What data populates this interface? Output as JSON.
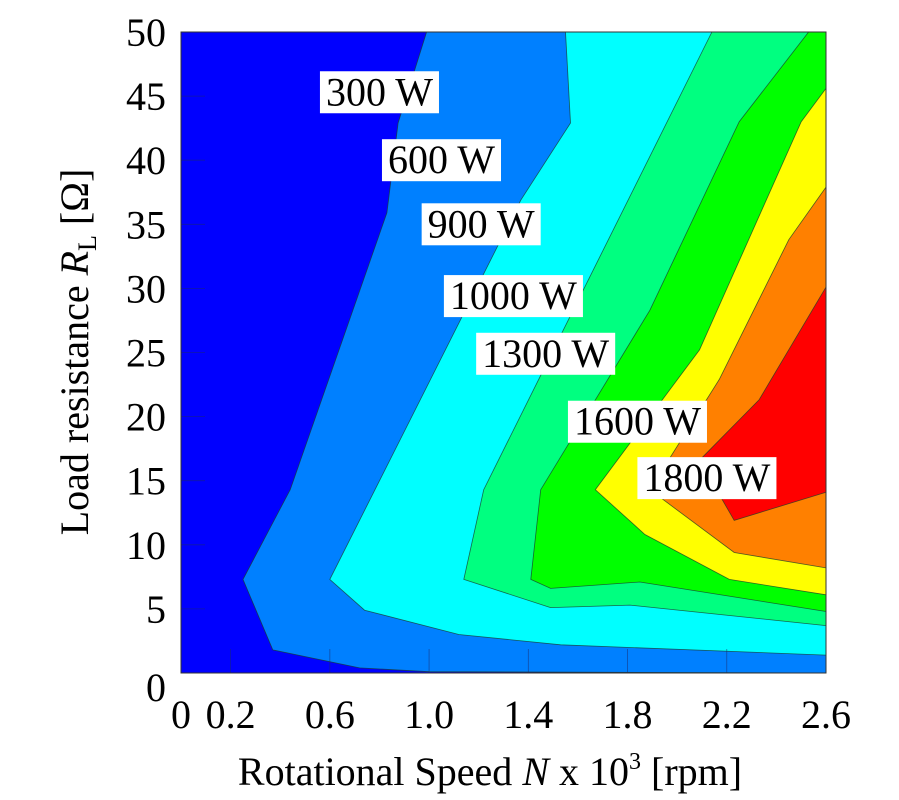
{
  "chart_data": {
    "type": "contour",
    "title": "",
    "xlabel": {
      "prefix": "Rotational Speed ",
      "variable": "N",
      "middle": " x 10",
      "superscript": "3",
      "suffix": " [rpm]"
    },
    "ylabel": {
      "prefix": "Load resistance ",
      "variable": "R",
      "subscript": "L",
      "suffix": " [Ω]"
    },
    "xlim": [
      0,
      2.6
    ],
    "ylim": [
      0,
      50
    ],
    "x_ticks": [
      0,
      0.2,
      0.6,
      1.0,
      1.4,
      1.8,
      2.2,
      2.6
    ],
    "x_tick_labels": [
      "0",
      "0.2",
      "0.6",
      "1.0",
      "1.4",
      "1.8",
      "2.2",
      "2.6"
    ],
    "y_ticks": [
      0,
      5,
      10,
      15,
      20,
      25,
      30,
      35,
      40,
      45,
      50
    ],
    "y_tick_labels": [
      "0",
      "5",
      "10",
      "15",
      "20",
      "25",
      "30",
      "35",
      "40",
      "45",
      "50"
    ],
    "value_unit": "W",
    "levels": [
      {
        "label": "300 W",
        "value": 300,
        "fill_below": "#0000ff",
        "label_pos": [
          0.8,
          45.3
        ]
      },
      {
        "label": "600 W",
        "value": 600,
        "fill_below": "#0080ff",
        "label_pos": [
          1.05,
          40.0
        ]
      },
      {
        "label": "900 W",
        "value": 900,
        "fill_below": "#00ffff",
        "label_pos": [
          1.21,
          35.0
        ]
      },
      {
        "label": "1000 W",
        "value": 1000,
        "fill_below": "#00ff80",
        "label_pos": [
          1.34,
          29.4
        ]
      },
      {
        "label": "1300 W",
        "value": 1300,
        "fill_below": "#00ff00",
        "label_pos": [
          1.47,
          24.9
        ]
      },
      {
        "label": "1600 W",
        "value": 1600,
        "fill_below": "#ffff00",
        "label_pos": [
          1.84,
          19.6
        ]
      },
      {
        "label": "1800 W",
        "value": 1800,
        "fill_below": "#ff8000",
        "label_pos": [
          2.12,
          15.2
        ]
      }
    ],
    "top_fill": "#ff0000",
    "contour_lines": [
      {
        "level": "300 W",
        "points": [
          [
            0.99,
            50
          ],
          [
            0.875,
            42.9
          ],
          [
            0.83,
            35.9
          ],
          [
            0.44,
            14.3
          ],
          [
            0.25,
            7.3
          ],
          [
            0.37,
            1.8
          ],
          [
            0.72,
            0.4
          ],
          [
            1.0,
            0.1
          ],
          [
            2.6,
            0.0
          ]
        ]
      },
      {
        "level": "600 W",
        "points": [
          [
            1.55,
            50
          ],
          [
            1.57,
            42.9
          ],
          [
            1.37,
            36.9
          ],
          [
            0.6,
            7.3
          ],
          [
            0.74,
            4.9
          ],
          [
            1.12,
            3.0
          ],
          [
            1.53,
            2.2
          ],
          [
            2.6,
            1.4
          ]
        ]
      },
      {
        "level": "900 W",
        "points": [
          [
            2.14,
            50
          ],
          [
            1.22,
            14.3
          ],
          [
            1.14,
            7.3
          ],
          [
            1.49,
            5.1
          ],
          [
            1.81,
            5.3
          ],
          [
            2.6,
            3.7
          ]
        ]
      },
      {
        "level": "1000 W",
        "points": [
          [
            2.53,
            50
          ],
          [
            2.25,
            43.0
          ],
          [
            1.89,
            28.3
          ],
          [
            1.45,
            14.3
          ],
          [
            1.41,
            7.3
          ],
          [
            1.49,
            6.6
          ],
          [
            1.85,
            7.1
          ],
          [
            2.6,
            4.8
          ]
        ]
      },
      {
        "level": "1300 W",
        "points": [
          [
            2.6,
            45.6
          ],
          [
            2.5,
            43.0
          ],
          [
            2.09,
            25.2
          ],
          [
            1.67,
            14.3
          ],
          [
            1.87,
            10.8
          ],
          [
            2.21,
            7.3
          ],
          [
            2.6,
            6.1
          ]
        ]
      },
      {
        "level": "1600 W",
        "points": [
          [
            2.6,
            37.9
          ],
          [
            2.45,
            33.8
          ],
          [
            2.17,
            22.9
          ],
          [
            1.89,
            14.3
          ],
          [
            2.23,
            9.4
          ],
          [
            2.6,
            8.2
          ]
        ]
      },
      {
        "level": "1800 W",
        "points": [
          [
            2.6,
            30.1
          ],
          [
            2.33,
            21.3
          ],
          [
            2.09,
            16.6
          ],
          [
            2.23,
            11.9
          ],
          [
            2.6,
            14.1
          ]
        ]
      }
    ],
    "grid": false,
    "legend": "none"
  }
}
